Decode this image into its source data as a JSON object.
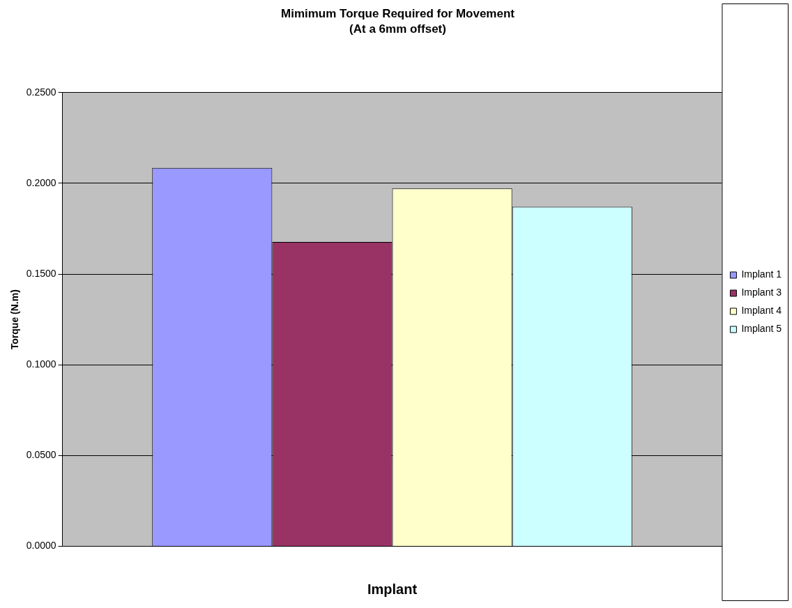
{
  "chart_data": {
    "type": "bar",
    "title": "Mimimum Torque Required for Movement",
    "subtitle": "(At a 6mm offset)",
    "xlabel": "Implant",
    "ylabel": "Torque (N.m)",
    "categories": [
      null
    ],
    "series": [
      {
        "name": "Implant 1",
        "color": "#9999ff",
        "values": [
          0.2085
        ]
      },
      {
        "name": "Implant 3",
        "color": "#993366",
        "values": [
          0.1677
        ]
      },
      {
        "name": "Implant 4",
        "color": "#ffffcc",
        "values": [
          0.1972
        ]
      },
      {
        "name": "Implant 5",
        "color": "#ccffff",
        "values": [
          0.1871
        ]
      }
    ],
    "ylim": [
      0,
      0.25
    ],
    "yticks": [
      {
        "value": 0,
        "label": "0.0000"
      },
      {
        "value": 0.05,
        "label": "0.0500"
      },
      {
        "value": 0.1,
        "label": "0.1000"
      },
      {
        "value": 0.15,
        "label": "0.1500"
      },
      {
        "value": 0.2,
        "label": "0.2000"
      },
      {
        "value": 0.25,
        "label": "0.2500"
      }
    ],
    "grid": "y",
    "legend": "right"
  }
}
